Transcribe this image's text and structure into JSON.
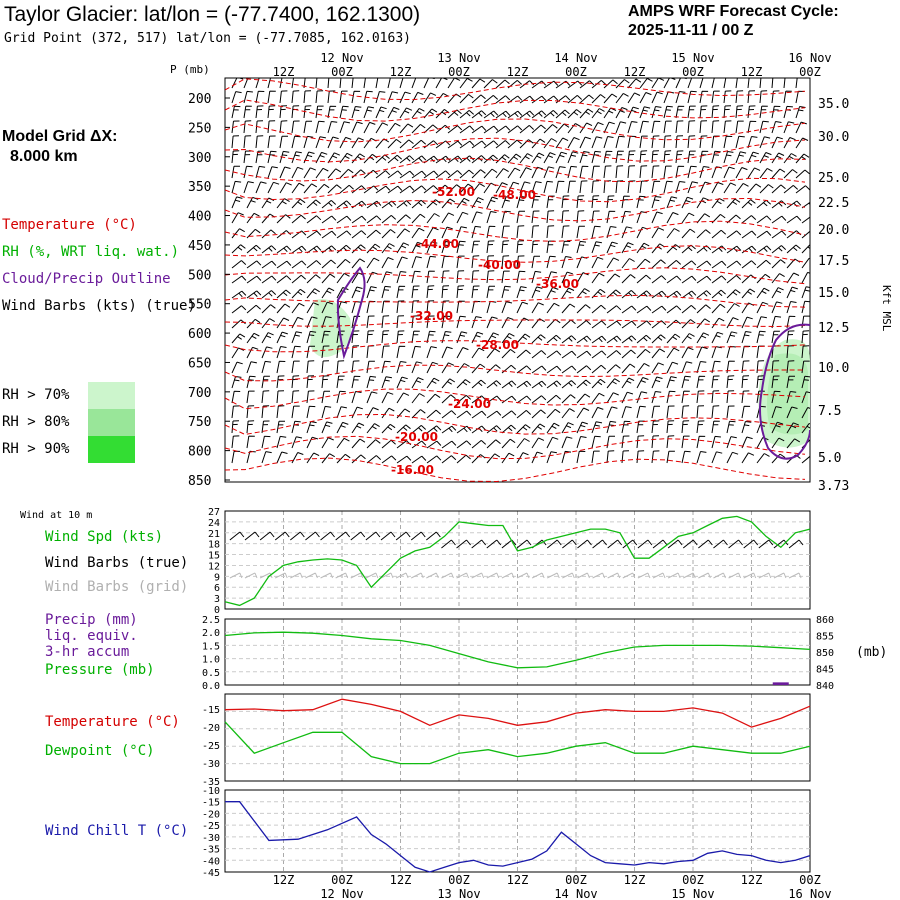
{
  "header": {
    "title": "Taylor Glacier:  lat/lon = (-77.7400, 162.1300)",
    "subtitle": "Grid Point (372, 517) lat/lon = (-77.7085, 162.0163)",
    "cycle_line1": "AMPS WRF Forecast Cycle:",
    "cycle_line2": "2025-11-11 / 00  Z"
  },
  "model_grid": {
    "line1": "Model Grid ΔX:",
    "line2": "8.000 km"
  },
  "legend": {
    "temperature": "Temperature (°C)",
    "rh": "RH (%, WRT liq. wat.)",
    "cloud": "Cloud/Precip Outline",
    "wind": "Wind Barbs (kts) (true)",
    "rh70": "RH > 70%",
    "rh80": "RH > 80%",
    "rh90": "RH > 90%",
    "colors": {
      "rh70": "#ccf5cc",
      "rh80": "#99e699",
      "rh90": "#33dd33"
    }
  },
  "time_axis": {
    "hours": [
      "12Z",
      "00Z",
      "12Z",
      "00Z",
      "12Z",
      "00Z",
      "12Z",
      "00Z",
      "12Z",
      "00Z"
    ],
    "dates": [
      "12 Nov",
      "13 Nov",
      "14 Nov",
      "15 Nov",
      "16 Nov"
    ]
  },
  "chart_data": [
    {
      "type": "heatmap",
      "name": "upper-air-cross-section",
      "ylabel": "P (mb)",
      "y_right_label": "Kft MSL",
      "pressure_ticks": [
        "200",
        "250",
        "300",
        "350",
        "400",
        "450",
        "500",
        "550",
        "600",
        "650",
        "700",
        "750",
        "800",
        "850"
      ],
      "kft_ticks": [
        "35.0",
        "30.0",
        "25.0",
        "22.5",
        "20.0",
        "17.5",
        "15.0",
        "12.5",
        "10.0",
        "7.5",
        "5.0",
        "3.73"
      ],
      "temperature_labels": [
        "-52.00",
        "-48.00",
        "-44.00",
        "-40.00",
        "-36.00",
        "-32.00",
        "-28.00",
        "-24.00",
        "-20.00",
        "-16.00"
      ]
    },
    {
      "type": "line",
      "name": "wind-at-10m",
      "title": "Wind at 10 m",
      "label_speed": "Wind Spd (kts)",
      "label_barbs_true": "Wind Barbs (true)",
      "label_barbs_grid": "Wind Barbs (grid)",
      "y_ticks": [
        "27",
        "24",
        "21",
        "18",
        "15",
        "12",
        "9",
        "6",
        "3",
        "0"
      ],
      "ylim": [
        0,
        27
      ],
      "x": [
        0,
        3,
        6,
        9,
        12,
        15,
        18,
        21,
        24,
        27,
        30,
        33,
        36,
        39,
        42,
        45,
        48,
        51,
        54,
        57,
        60,
        63,
        66,
        69,
        72,
        75,
        78,
        81,
        84,
        87,
        90,
        93,
        96,
        99,
        102,
        105,
        108,
        111,
        114,
        117,
        120
      ],
      "speed": [
        2,
        1,
        3,
        9,
        12,
        13,
        13.5,
        13.8,
        13.5,
        12,
        6,
        10,
        14,
        16,
        17,
        20,
        24,
        23.5,
        23,
        23,
        16,
        17,
        19,
        20,
        21,
        22,
        22,
        21,
        14,
        14,
        17,
        20,
        21,
        23,
        25,
        25.5,
        24,
        20,
        17,
        21,
        22
      ]
    },
    {
      "type": "line",
      "name": "precip-pressure",
      "label_precip": "Precip (mm)",
      "label_liq": "liq. equiv.",
      "label_accum": "3-hr accum",
      "label_pressure": "Pressure (mb)",
      "precip_ticks": [
        "2.5",
        "2.0",
        "1.5",
        "1.0",
        "0.5",
        "0.0"
      ],
      "pressure_ticks": [
        "860",
        "855",
        "850",
        "845",
        "840"
      ],
      "right_unit": "(mb)",
      "ylim_pressure": [
        840,
        860
      ],
      "x": [
        0,
        6,
        12,
        18,
        24,
        30,
        36,
        42,
        48,
        54,
        60,
        66,
        72,
        78,
        84,
        90,
        96,
        102,
        108,
        114,
        120
      ],
      "pressure": [
        855,
        855.8,
        856,
        855.7,
        855,
        854,
        853.5,
        852,
        849.5,
        847,
        845.2,
        845.5,
        847.5,
        849.8,
        851.5,
        852,
        852,
        852,
        851.8,
        851.3,
        850.8
      ],
      "precip": [
        0,
        0,
        0,
        0,
        0,
        0,
        0,
        0,
        0,
        0,
        0,
        0,
        0,
        0,
        0,
        0,
        0,
        0,
        0,
        0.1,
        0
      ]
    },
    {
      "type": "line",
      "name": "temperature-dewpoint",
      "label_temperature": "Temperature (°C)",
      "label_dewpoint": "Dewpoint (°C)",
      "y_ticks": [
        "-15",
        "-20",
        "-25",
        "-30",
        "-35"
      ],
      "ylim": [
        -35,
        -10
      ],
      "x": [
        0,
        6,
        12,
        18,
        24,
        30,
        36,
        42,
        48,
        54,
        60,
        66,
        72,
        78,
        84,
        90,
        96,
        102,
        108,
        114,
        120
      ],
      "temperature": [
        -14.5,
        -14.3,
        -14.8,
        -14.5,
        -11.5,
        -13,
        -15,
        -19,
        -16,
        -17,
        -19,
        -18,
        -15.5,
        -14.5,
        -15,
        -15,
        -14,
        -15.5,
        -19.5,
        -17,
        -13.5
      ],
      "dewpoint": [
        -18,
        -27,
        -24,
        -21,
        -21,
        -28,
        -30,
        -30,
        -27,
        -26,
        -28,
        -27,
        -25,
        -24,
        -27,
        -27,
        -25,
        -26,
        -27,
        -27,
        -25
      ]
    },
    {
      "type": "line",
      "name": "wind-chill",
      "label": "Wind Chill T (°C)",
      "y_ticks": [
        "-10",
        "-15",
        "-20",
        "-25",
        "-30",
        "-35",
        "-40",
        "-45"
      ],
      "ylim": [
        -45,
        -10
      ],
      "x": [
        0,
        3,
        9,
        15,
        21,
        27,
        30,
        33,
        36,
        39,
        42,
        45,
        48,
        51,
        54,
        57,
        60,
        63,
        66,
        69,
        72,
        75,
        78,
        81,
        84,
        87,
        90,
        93,
        96,
        99,
        102,
        105,
        108,
        111,
        114,
        117,
        120
      ],
      "windchill": [
        -15,
        -15,
        -31.5,
        -31,
        -27,
        -21.5,
        -29,
        -33,
        -38,
        -43,
        -45,
        -43,
        -41,
        -40,
        -42,
        -42.5,
        -41,
        -39.5,
        -36,
        -28,
        -33,
        -38,
        -41,
        -41.5,
        -42,
        -41,
        -41.5,
        -40.5,
        -40,
        -37,
        -36,
        -37.5,
        -38,
        -40,
        -41,
        -40,
        -38
      ]
    }
  ]
}
